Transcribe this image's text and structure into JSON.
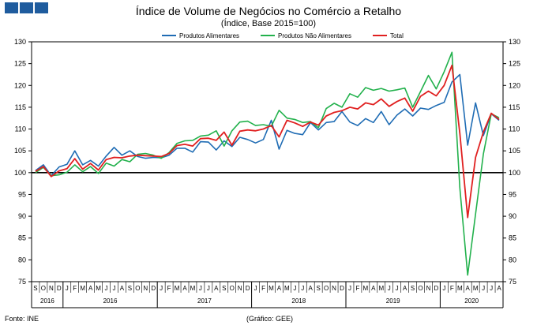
{
  "header": {
    "title": "Índice de Volume de Negócios no Comércio a Retalho",
    "subtitle": "(Índice, Base 2015=100)"
  },
  "footer": {
    "source": "Fonte: INE",
    "credit": "(Gráfico: GEE)"
  },
  "colors": {
    "brand": "#1f5c9e",
    "alimentares": "#1f6cb4",
    "nao_alimentares": "#22b14c",
    "total": "#e02020",
    "baseline": "#000000"
  },
  "chart_data": {
    "type": "line",
    "title": "Índice de Volume de Negócios no Comércio a Retalho",
    "subtitle": "(Índice, Base 2015=100)",
    "ylim": [
      75,
      130
    ],
    "y_ticks": [
      75,
      80,
      85,
      90,
      95,
      100,
      105,
      110,
      115,
      120,
      125,
      130
    ],
    "dual_y_axis": true,
    "reference_line": 100,
    "grid": false,
    "legend_position": "top-right",
    "x_month_labels": [
      "S",
      "O",
      "N",
      "D",
      "J",
      "F",
      "M",
      "A",
      "M",
      "J",
      "J",
      "A",
      "S",
      "O",
      "N",
      "D",
      "J",
      "F",
      "M",
      "A",
      "M",
      "J",
      "J",
      "A",
      "S",
      "O",
      "N",
      "D",
      "J",
      "F",
      "M",
      "A",
      "M",
      "J",
      "J",
      "A",
      "S",
      "O",
      "N",
      "D",
      "J",
      "F",
      "M",
      "A",
      "M",
      "J",
      "J",
      "A",
      "S",
      "O",
      "N",
      "D",
      "J",
      "F",
      "M",
      "A",
      "M",
      "J",
      "J",
      "A"
    ],
    "year_groups": [
      {
        "label": "2016",
        "start": 0,
        "count": 4
      },
      {
        "label": "2016",
        "start": 4,
        "count": 12
      },
      {
        "label": "2017",
        "start": 16,
        "count": 12
      },
      {
        "label": "2018",
        "start": 28,
        "count": 12
      },
      {
        "label": "2019",
        "start": 40,
        "count": 12
      },
      {
        "label": "2020",
        "start": 52,
        "count": 8
      }
    ],
    "series": [
      {
        "name": "Produtos Alimentares",
        "values": [
          100.5,
          101.8,
          99.3,
          101.3,
          101.9,
          105.0,
          101.8,
          102.8,
          101.5,
          103.8,
          105.8,
          104.0,
          105.0,
          103.7,
          103.3,
          103.5,
          103.4,
          104.0,
          105.6,
          105.6,
          104.7,
          107.1,
          107.0,
          105.2,
          107.3,
          106.0,
          108.1,
          107.6,
          106.8,
          107.6,
          112.0,
          105.4,
          109.7,
          109.0,
          108.7,
          111.5,
          109.8,
          111.5,
          111.7,
          114.0,
          111.6,
          110.8,
          112.4,
          111.5,
          114.0,
          111.0,
          113.2,
          114.6,
          113.0,
          114.8,
          114.5,
          115.4,
          116.1,
          120.8,
          122.5,
          106.3,
          116.0,
          108.5,
          113.5,
          112.0
        ]
      },
      {
        "name": "Produtos Não Alimentares",
        "values": [
          100.0,
          101.2,
          99.3,
          99.5,
          100.1,
          101.8,
          100.2,
          101.4,
          99.8,
          102.2,
          101.5,
          103.0,
          102.5,
          104.2,
          104.4,
          104.0,
          103.3,
          104.6,
          106.7,
          107.3,
          107.4,
          108.4,
          108.6,
          109.6,
          106.1,
          109.6,
          111.6,
          111.8,
          110.8,
          111.0,
          110.6,
          114.3,
          112.5,
          112.2,
          111.5,
          111.7,
          110.3,
          114.7,
          115.9,
          115.0,
          118.1,
          117.3,
          119.5,
          118.9,
          119.3,
          118.7,
          119.0,
          119.4,
          115.0,
          118.6,
          122.3,
          119.2,
          123.1,
          127.6,
          96.5,
          76.5,
          90.5,
          104.3,
          113.5,
          112.6
        ]
      },
      {
        "name": "Total",
        "values": [
          100.3,
          101.4,
          99.1,
          100.4,
          100.9,
          103.2,
          100.8,
          102.1,
          100.6,
          103.0,
          103.5,
          103.4,
          103.8,
          104.0,
          103.9,
          103.8,
          103.7,
          104.4,
          106.2,
          106.5,
          106.1,
          107.8,
          107.9,
          107.4,
          109.3,
          106.3,
          109.5,
          109.8,
          109.6,
          110.0,
          110.8,
          108.2,
          112.0,
          111.4,
          110.6,
          111.6,
          110.9,
          113.0,
          113.8,
          114.2,
          115.0,
          114.6,
          116.0,
          115.6,
          116.9,
          115.2,
          116.3,
          117.1,
          114.1,
          117.5,
          118.7,
          117.6,
          120.0,
          124.6,
          109.0,
          89.7,
          103.5,
          109.3,
          113.6,
          112.2
        ]
      }
    ]
  }
}
